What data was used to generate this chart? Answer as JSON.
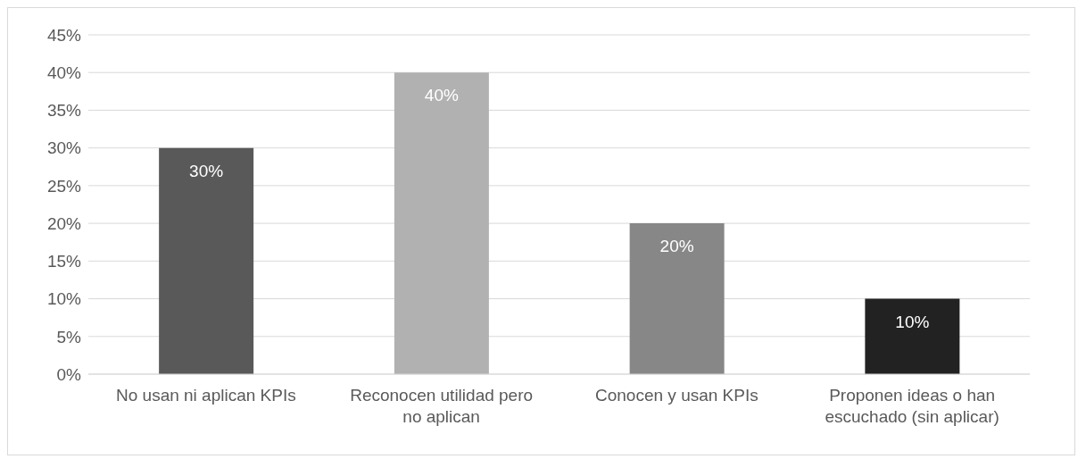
{
  "chart_data": {
    "type": "bar",
    "categories": [
      "No usan ni aplican KPIs",
      "Reconocen utilidad pero no aplican",
      "Conocen y usan KPIs",
      "Proponen ideas o han escuchado (sin aplicar)"
    ],
    "values": [
      30,
      40,
      20,
      10
    ],
    "colors": [
      "#595959",
      "#b1b1b1",
      "#878787",
      "#222222"
    ],
    "value_labels": [
      "30%",
      "40%",
      "20%",
      "10%"
    ],
    "ylim": [
      0,
      45
    ],
    "yticks": [
      {
        "value": 0,
        "label": "0%"
      },
      {
        "value": 5,
        "label": "5%"
      },
      {
        "value": 10,
        "label": "10%"
      },
      {
        "value": 15,
        "label": "15%"
      },
      {
        "value": 20,
        "label": "20%"
      },
      {
        "value": 25,
        "label": "25%"
      },
      {
        "value": 30,
        "label": "30%"
      },
      {
        "value": 35,
        "label": "35%"
      },
      {
        "value": 40,
        "label": "40%"
      },
      {
        "value": 45,
        "label": "45%"
      }
    ],
    "grid": "y"
  }
}
